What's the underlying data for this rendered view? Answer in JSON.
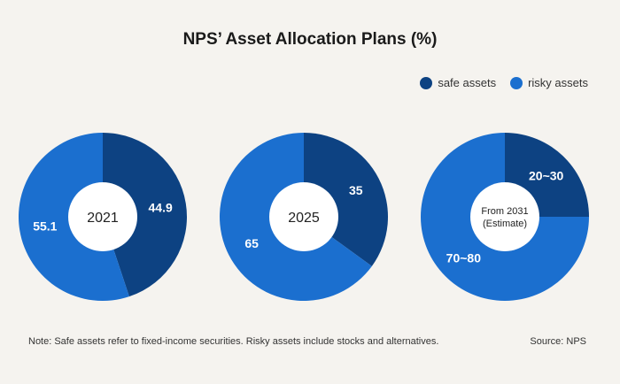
{
  "title": "NPS’ Asset Allocation Plans (%)",
  "legend": {
    "safe": "safe assets",
    "risky": "risky assets"
  },
  "colors": {
    "safe": "#0d4282",
    "risky": "#1b6fcf",
    "hole": "#ffffff",
    "background": "#f5f3ef"
  },
  "note": "Note: Safe assets refer to fixed-income securities. Risky assets include stocks and alternatives.",
  "source": "Source: NPS",
  "chart_data": {
    "type": "pie",
    "charts": [
      {
        "center_label": [
          "2021"
        ],
        "slices": [
          {
            "series": "safe assets",
            "value": 44.9,
            "label": "44.9"
          },
          {
            "series": "risky assets",
            "value": 55.1,
            "label": "55.1"
          }
        ]
      },
      {
        "center_label": [
          "2025"
        ],
        "slices": [
          {
            "series": "safe assets",
            "value": 35,
            "label": "35"
          },
          {
            "series": "risky assets",
            "value": 65,
            "label": "65"
          }
        ]
      },
      {
        "center_label": [
          "From 2031",
          "(Estimate)"
        ],
        "slices": [
          {
            "series": "safe assets",
            "value": 25,
            "label": "20~30"
          },
          {
            "series": "risky assets",
            "value": 75,
            "label": "70~80"
          }
        ]
      }
    ]
  }
}
